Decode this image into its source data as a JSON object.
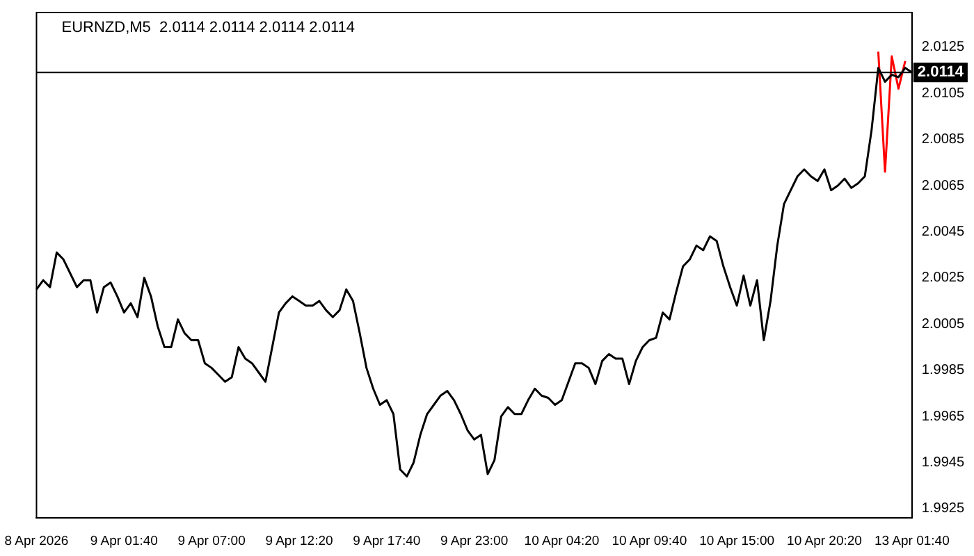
{
  "chart_data": {
    "type": "line",
    "title": "EURNZD,M5  2.0114 2.0114 2.0114 2.0114",
    "categories": [
      "8 Apr 2026",
      null,
      null,
      null,
      null,
      null,
      null,
      null,
      null,
      null,
      null,
      null,
      null,
      "9 Apr 01:40",
      null,
      null,
      null,
      null,
      null,
      null,
      null,
      null,
      null,
      null,
      null,
      null,
      "9 Apr 07:00",
      null,
      null,
      null,
      null,
      null,
      null,
      null,
      null,
      null,
      null,
      null,
      null,
      "9 Apr 12:20",
      null,
      null,
      null,
      null,
      null,
      null,
      null,
      null,
      null,
      null,
      null,
      null,
      "9 Apr 17:40",
      null,
      null,
      null,
      null,
      null,
      null,
      null,
      null,
      null,
      null,
      null,
      null,
      "9 Apr 23:00",
      null,
      null,
      null,
      null,
      null,
      null,
      null,
      null,
      null,
      null,
      null,
      null,
      "10 Apr 04:20",
      null,
      null,
      null,
      null,
      null,
      null,
      null,
      null,
      null,
      null,
      null,
      null,
      "10 Apr 09:40",
      null,
      null,
      null,
      null,
      null,
      null,
      null,
      null,
      null,
      null,
      null,
      null,
      "10 Apr 15:00",
      null,
      null,
      null,
      null,
      null,
      null,
      null,
      null,
      null,
      null,
      null,
      null,
      "10 Apr 20:20",
      null,
      null,
      null,
      null,
      null,
      null,
      null,
      null,
      null,
      null,
      null,
      null,
      "13 Apr 01:40"
    ],
    "series": [
      {
        "color": "#000000",
        "values": [
          2.002,
          2.0024,
          2.0021,
          2.0036,
          2.0033,
          2.0027,
          2.0021,
          2.0024,
          2.0024,
          2.001,
          2.0021,
          2.0023,
          2.0017,
          2.001,
          2.0014,
          2.0008,
          2.0025,
          2.0017,
          2.0004,
          1.9995,
          1.9995,
          2.0007,
          2.0001,
          1.9998,
          1.9998,
          1.9988,
          1.9986,
          1.9983,
          1.998,
          1.9982,
          1.9995,
          1.999,
          1.9988,
          1.9984,
          1.998,
          1.9995,
          2.001,
          2.0014,
          2.0017,
          2.0015,
          2.0013,
          2.0013,
          2.0015,
          2.0011,
          2.0008,
          2.0011,
          2.002,
          2.0015,
          2.0001,
          1.9986,
          1.9977,
          1.997,
          1.9972,
          1.9966,
          1.9942,
          1.9939,
          1.9945,
          1.9957,
          1.9966,
          1.997,
          1.9974,
          1.9976,
          1.9972,
          1.9966,
          1.9959,
          1.9955,
          1.9957,
          1.994,
          1.9946,
          1.9965,
          1.9969,
          1.9966,
          1.9966,
          1.9972,
          1.9977,
          1.9974,
          1.9973,
          1.997,
          1.9972,
          1.998,
          1.9988,
          1.9988,
          1.9986,
          1.9979,
          1.9989,
          1.9992,
          1.999,
          1.999,
          1.9979,
          1.9989,
          1.9995,
          1.9998,
          1.9999,
          2.001,
          2.0007,
          2.0019,
          2.003,
          2.0033,
          2.0039,
          2.0037,
          2.0043,
          2.0041,
          2.003,
          2.0021,
          2.0013,
          2.0026,
          2.0013,
          2.0024,
          1.9998,
          2.0015,
          2.0039,
          2.0057,
          2.0063,
          2.0069,
          2.0072,
          2.0069,
          2.0067,
          2.0072,
          2.0063,
          2.0065,
          2.0068,
          2.0064,
          2.0066,
          2.0069,
          2.0089,
          2.0116,
          2.011,
          2.0113,
          2.0112,
          2.0116,
          2.0114
        ]
      },
      {
        "color": "#ff0000",
        "values": [
          null,
          null,
          null,
          null,
          null,
          null,
          null,
          null,
          null,
          null,
          null,
          null,
          null,
          null,
          null,
          null,
          null,
          null,
          null,
          null,
          null,
          null,
          null,
          null,
          null,
          null,
          null,
          null,
          null,
          null,
          null,
          null,
          null,
          null,
          null,
          null,
          null,
          null,
          null,
          null,
          null,
          null,
          null,
          null,
          null,
          null,
          null,
          null,
          null,
          null,
          null,
          null,
          null,
          null,
          null,
          null,
          null,
          null,
          null,
          null,
          null,
          null,
          null,
          null,
          null,
          null,
          null,
          null,
          null,
          null,
          null,
          null,
          null,
          null,
          null,
          null,
          null,
          null,
          null,
          null,
          null,
          null,
          null,
          null,
          null,
          null,
          null,
          null,
          null,
          null,
          null,
          null,
          null,
          null,
          null,
          null,
          null,
          null,
          null,
          null,
          null,
          null,
          null,
          null,
          null,
          null,
          null,
          null,
          null,
          null,
          null,
          null,
          null,
          null,
          null,
          null,
          null,
          null,
          null,
          null,
          null,
          null,
          null,
          null,
          null,
          2.0123,
          2.0071,
          2.0121,
          2.0107,
          2.0119,
          null
        ]
      }
    ],
    "ylim": [
      1.9921,
      2.014
    ],
    "yticks": [
      1.9925,
      1.9945,
      1.9965,
      1.9985,
      2.0005,
      2.0025,
      2.0045,
      2.0065,
      2.0085,
      2.0105,
      2.0125
    ],
    "ref_lines": [
      {
        "axis": "y",
        "value": 2.0114,
        "label": "2.0114",
        "color": "#000000"
      }
    ],
    "grid": false,
    "legend": false
  }
}
